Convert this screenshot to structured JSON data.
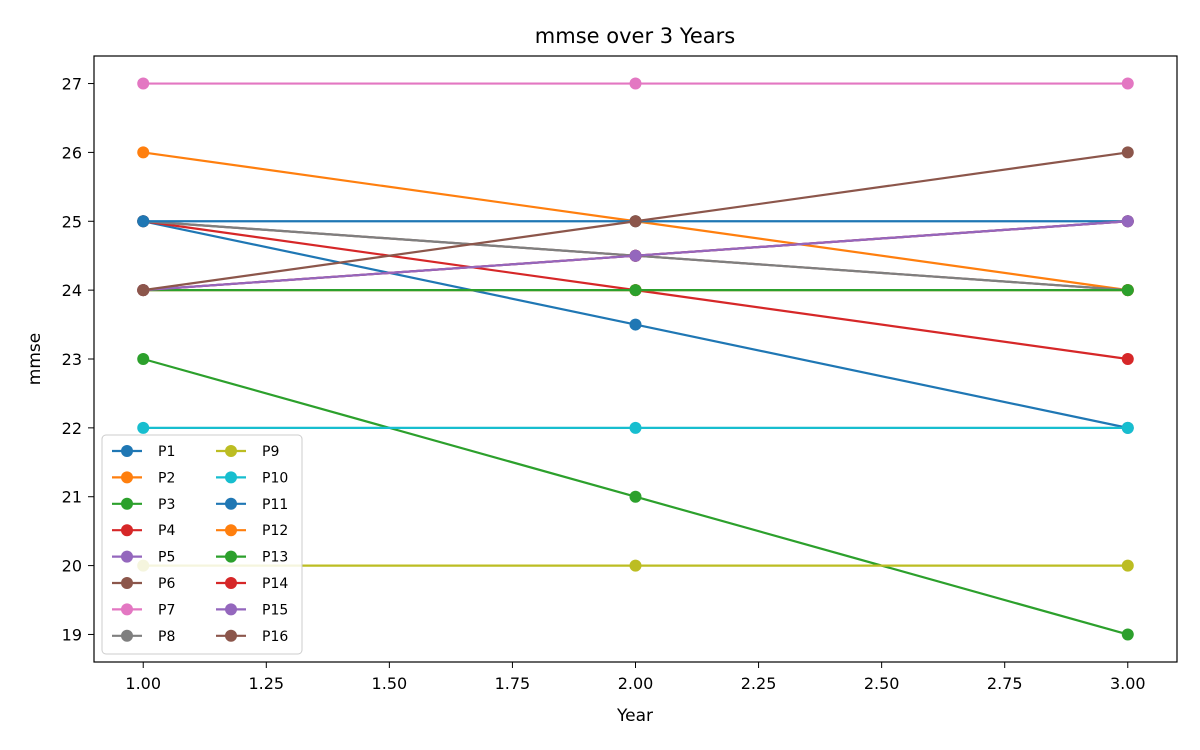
{
  "chart_data": {
    "type": "line",
    "title": "mmse over 3 Years",
    "xlabel": "Year",
    "ylabel": "mmse",
    "xlim": [
      0.9,
      3.1
    ],
    "ylim": [
      18.6,
      27.4
    ],
    "x_ticks": [
      "1.00",
      "1.25",
      "1.50",
      "1.75",
      "2.00",
      "2.25",
      "2.50",
      "2.75",
      "3.00"
    ],
    "y_ticks": [
      "19",
      "20",
      "21",
      "22",
      "23",
      "24",
      "25",
      "26",
      "27"
    ],
    "grid": false,
    "legend_position": "lower-left",
    "legend_columns": 2,
    "x": [
      1,
      2,
      3
    ],
    "series": [
      {
        "name": "P1",
        "color": "#1f77b4",
        "values": [
          25,
          23.5,
          22
        ]
      },
      {
        "name": "P2",
        "color": "#ff7f0e",
        "values": [
          26,
          25,
          24
        ]
      },
      {
        "name": "P3",
        "color": "#2ca02c",
        "values": [
          23,
          21,
          19
        ]
      },
      {
        "name": "P4",
        "color": "#d62728",
        "values": [
          25,
          24,
          23
        ]
      },
      {
        "name": "P5",
        "color": "#9467bd",
        "values": [
          24,
          24.5,
          25
        ]
      },
      {
        "name": "P6",
        "color": "#8c564b",
        "values": [
          25,
          24.5,
          24
        ]
      },
      {
        "name": "P7",
        "color": "#e377c2",
        "values": [
          27,
          27,
          27
        ]
      },
      {
        "name": "P8",
        "color": "#7f7f7f",
        "values": [
          25,
          24.5,
          24
        ]
      },
      {
        "name": "P9",
        "color": "#bcbd22",
        "values": [
          20,
          20,
          20
        ]
      },
      {
        "name": "P10",
        "color": "#17becf",
        "values": [
          22,
          22,
          22
        ]
      },
      {
        "name": "P11",
        "color": "#1f77b4",
        "values": [
          25,
          25,
          25
        ]
      },
      {
        "name": "P12",
        "color": "#ff7f0e",
        "values": [
          24,
          24,
          24
        ]
      },
      {
        "name": "P13",
        "color": "#2ca02c",
        "values": [
          24,
          24,
          24
        ]
      },
      {
        "name": "P14",
        "color": "#d62728",
        "values": [
          24,
          24.5,
          25
        ]
      },
      {
        "name": "P15",
        "color": "#9467bd",
        "values": [
          24,
          24.5,
          25
        ]
      },
      {
        "name": "P16",
        "color": "#8c564b",
        "values": [
          24,
          25,
          26
        ]
      }
    ]
  }
}
